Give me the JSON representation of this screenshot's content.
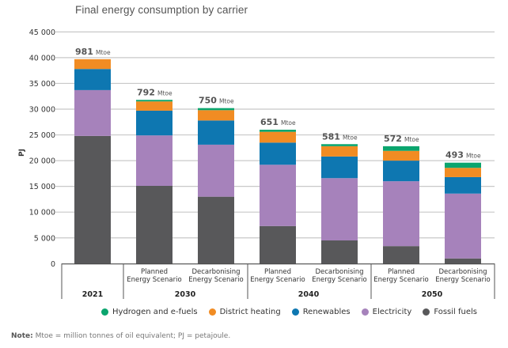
{
  "chart_data": {
    "type": "bar",
    "stacked": true,
    "title": "Final energy consumption by carrier",
    "ylabel": "PJ",
    "xlabel": "",
    "ylim": [
      0,
      45000
    ],
    "yticks": [
      0,
      5000,
      10000,
      15000,
      20000,
      25000,
      30000,
      35000,
      40000,
      45000
    ],
    "ytick_labels": [
      "0",
      "5 000",
      "10 000",
      "15 000",
      "20 000",
      "25 000",
      "30 000",
      "35 000",
      "40 000",
      "45 000"
    ],
    "grid": true,
    "legend_position": "bottom",
    "groups": [
      {
        "label": "2021",
        "bars": [
          0
        ]
      },
      {
        "label": "2030",
        "bars": [
          1,
          2
        ]
      },
      {
        "label": "2040",
        "bars": [
          3,
          4
        ]
      },
      {
        "label": "2050",
        "bars": [
          5,
          6
        ]
      }
    ],
    "categories": [
      {
        "scenario": "",
        "year": "2021",
        "total_label_value": "981",
        "total_label_unit": "Mtoe"
      },
      {
        "scenario": "Planned\nEnergy Scenario",
        "year": "2030",
        "total_label_value": "792",
        "total_label_unit": "Mtoe"
      },
      {
        "scenario": "Decarbonising\nEnergy Scenario",
        "year": "2030",
        "total_label_value": "750",
        "total_label_unit": "Mtoe"
      },
      {
        "scenario": "Planned\nEnergy Scenario",
        "year": "2040",
        "total_label_value": "651",
        "total_label_unit": "Mtoe"
      },
      {
        "scenario": "Decarbonising\nEnergy Scenario",
        "year": "2040",
        "total_label_value": "581",
        "total_label_unit": "Mtoe"
      },
      {
        "scenario": "Planned\nEnergy Scenario",
        "year": "2050",
        "total_label_value": "572",
        "total_label_unit": "Mtoe"
      },
      {
        "scenario": "Decarbonising\nEnergy Scenario",
        "year": "2050",
        "total_label_value": "493",
        "total_label_unit": "Mtoe"
      }
    ],
    "series": [
      {
        "name": "Fossil fuels",
        "color": "#58585a",
        "values": [
          24800,
          15100,
          13000,
          7300,
          4500,
          3400,
          1000
        ]
      },
      {
        "name": "Electricity",
        "color": "#a682bb",
        "values": [
          8900,
          9800,
          10100,
          11900,
          12100,
          12600,
          12600
        ]
      },
      {
        "name": "Renewables",
        "color": "#0e77b1",
        "values": [
          4100,
          4800,
          4700,
          4300,
          4200,
          4000,
          3200
        ]
      },
      {
        "name": "District heating",
        "color": "#f18c23",
        "values": [
          1900,
          1800,
          2000,
          2100,
          2000,
          1900,
          1800
        ]
      },
      {
        "name": "Hydrogen and e-fuels",
        "color": "#0ba56e",
        "values": [
          0,
          300,
          400,
          400,
          400,
          900,
          1000
        ]
      }
    ],
    "legend_order": [
      "Hydrogen and e-fuels",
      "District heating",
      "Renewables",
      "Electricity",
      "Fossil fuels"
    ]
  },
  "legend": [
    {
      "label": "Hydrogen and e-fuels",
      "color": "#0ba56e"
    },
    {
      "label": "District heating",
      "color": "#f18c23"
    },
    {
      "label": "Renewables",
      "color": "#0e77b1"
    },
    {
      "label": "Electricity",
      "color": "#a682bb"
    },
    {
      "label": "Fossil fuels",
      "color": "#58585a"
    }
  ],
  "note": {
    "label": "Note:",
    "text": " Mtoe = million tonnes of oil equivalent; PJ = petajoule."
  }
}
